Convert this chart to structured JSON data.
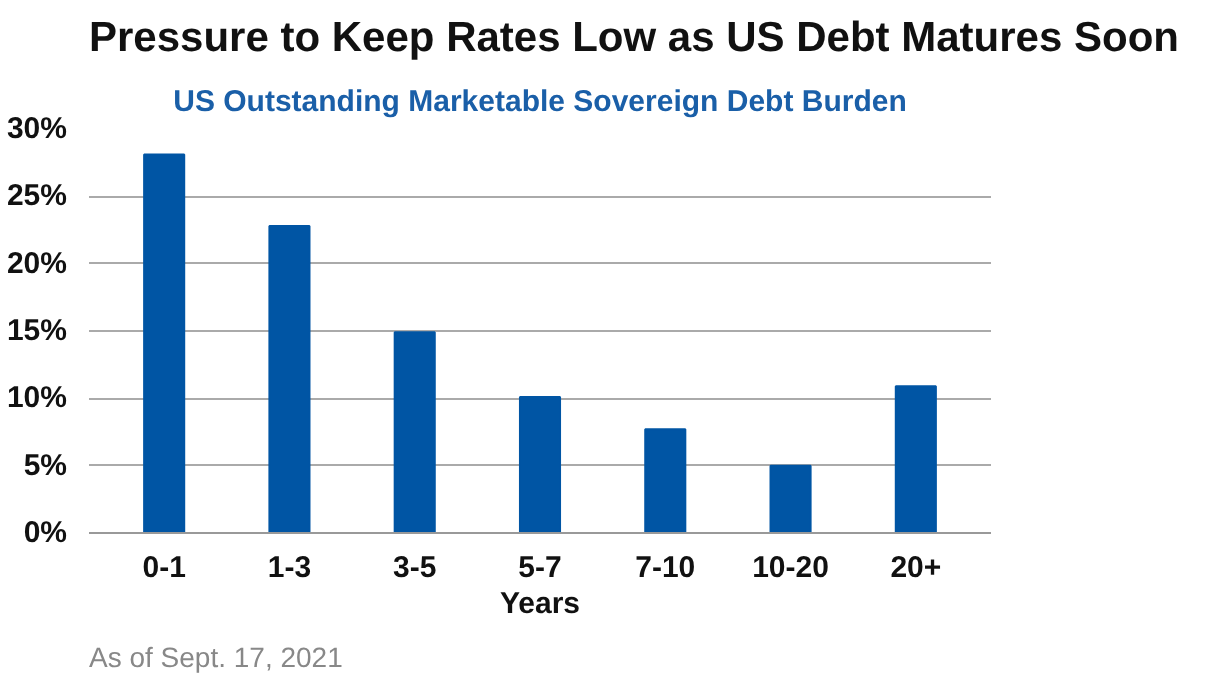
{
  "chart_data": {
    "type": "bar",
    "title": "Pressure to Keep Rates Low as US Debt Matures Soon",
    "subtitle": "US Outstanding Marketable Sovereign Debt Burden",
    "xlabel": "Years",
    "categories": [
      "0-1",
      "1-3",
      "3-5",
      "5-7",
      "7-10",
      "10-20",
      "20+"
    ],
    "values": [
      28.1,
      22.8,
      14.9,
      10.1,
      7.7,
      5.0,
      10.9
    ],
    "color": "#0055a4",
    "ylim": [
      0,
      30
    ],
    "yticks": [
      {
        "value": 0,
        "label": "0%"
      },
      {
        "value": 5,
        "label": "5%"
      },
      {
        "value": 10,
        "label": "10%"
      },
      {
        "value": 15,
        "label": "15%"
      },
      {
        "value": 20,
        "label": "20%"
      },
      {
        "value": 25,
        "label": "25%"
      },
      {
        "value": 30,
        "label": "30%"
      }
    ],
    "grid": "y",
    "annotations": [
      "As of Sept. 17, 2021"
    ]
  }
}
